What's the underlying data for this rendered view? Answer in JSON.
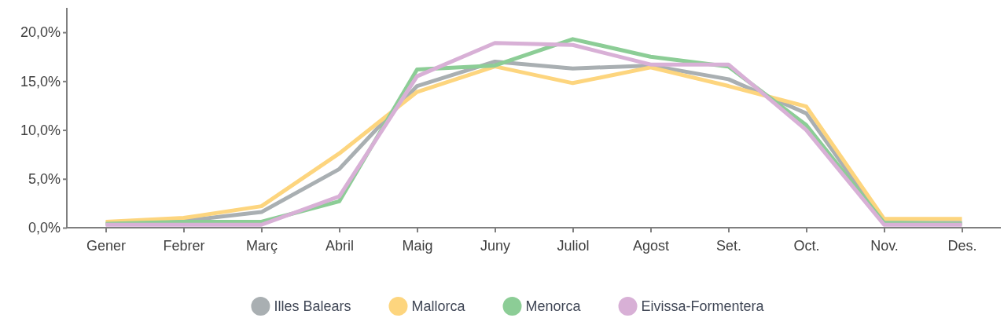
{
  "chart_data": {
    "type": "line",
    "categories": [
      "Gener",
      "Febrer",
      "Març",
      "Abril",
      "Maig",
      "Juny",
      "Juliol",
      "Agost",
      "Set.",
      "Oct.",
      "Nov.",
      "Des."
    ],
    "series": [
      {
        "name": "Illes Balears",
        "color": "#a9afb2",
        "values": [
          0.4,
          0.7,
          1.6,
          6.0,
          14.5,
          17.0,
          16.3,
          16.6,
          15.2,
          11.7,
          0.5,
          0.5
        ]
      },
      {
        "name": "Mallorca",
        "color": "#fdd57e",
        "values": [
          0.6,
          1.0,
          2.2,
          7.6,
          13.9,
          16.5,
          14.8,
          16.4,
          14.5,
          12.4,
          0.9,
          0.9
        ]
      },
      {
        "name": "Menorca",
        "color": "#8ccd96",
        "values": [
          0.4,
          0.6,
          0.6,
          2.7,
          16.2,
          16.6,
          19.3,
          17.5,
          16.5,
          10.5,
          0.5,
          0.4
        ]
      },
      {
        "name": "Eivissa-Formentera",
        "color": "#d8b0d6",
        "values": [
          0.3,
          0.3,
          0.3,
          3.2,
          15.5,
          18.9,
          18.7,
          16.7,
          16.7,
          10.0,
          0.3,
          0.3
        ]
      }
    ],
    "ylim": [
      0,
      22.5
    ],
    "yticks": [
      {
        "value": 0,
        "label": "0,0%"
      },
      {
        "value": 5,
        "label": "5,0%"
      },
      {
        "value": 10,
        "label": "10,0%"
      },
      {
        "value": 15,
        "label": "15,0%"
      },
      {
        "value": 20,
        "label": "20,0%"
      }
    ],
    "grid": false,
    "legend": "bottom",
    "marker": "none",
    "line_style": "solid"
  }
}
